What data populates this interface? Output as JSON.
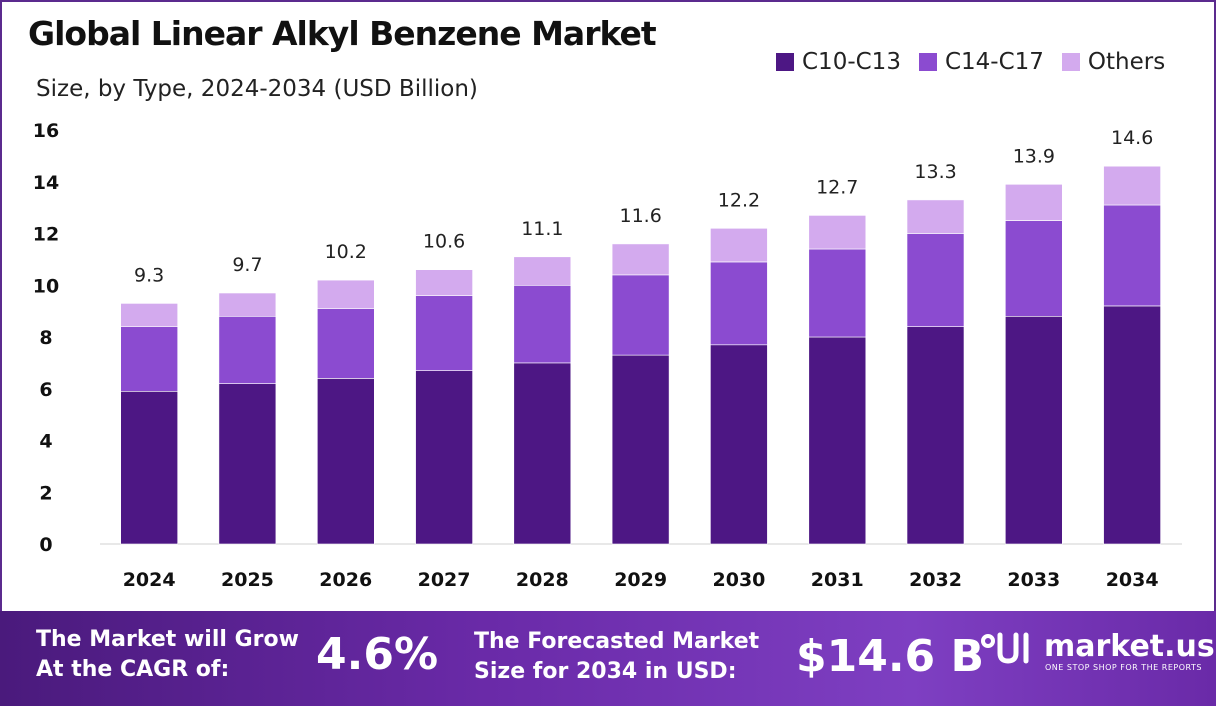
{
  "header": {
    "title": "Global Linear Alkyl Benzene Market",
    "subtitle": "Size, by Type, 2024-2034 (USD Billion)"
  },
  "colors": {
    "c10_c13": "#4d1784",
    "c14_c17": "#8b4bd0",
    "others": "#d3aaee",
    "accent": "#5b2a8e"
  },
  "legend": [
    {
      "label": "C10-C13",
      "color": "#4d1784"
    },
    {
      "label": "C14-C17",
      "color": "#8b4bd0"
    },
    {
      "label": "Others",
      "color": "#d3aaee"
    }
  ],
  "chart_data": {
    "type": "bar",
    "stacked": true,
    "title": "Global Linear Alkyl Benzene Market",
    "subtitle": "Size, by Type, 2024-2034 (USD Billion)",
    "categories": [
      "2024",
      "2025",
      "2026",
      "2027",
      "2028",
      "2029",
      "2030",
      "2031",
      "2032",
      "2033",
      "2034"
    ],
    "series": [
      {
        "name": "C10-C13",
        "values": [
          5.9,
          6.2,
          6.4,
          6.7,
          7.0,
          7.3,
          7.7,
          8.0,
          8.4,
          8.8,
          9.2
        ]
      },
      {
        "name": "C14-C17",
        "values": [
          2.5,
          2.6,
          2.7,
          2.9,
          3.0,
          3.1,
          3.2,
          3.4,
          3.6,
          3.7,
          3.9
        ]
      },
      {
        "name": "Others",
        "values": [
          0.9,
          0.9,
          1.1,
          1.0,
          1.1,
          1.2,
          1.3,
          1.3,
          1.3,
          1.4,
          1.5
        ]
      }
    ],
    "totals": [
      "9.3",
      "9.7",
      "10.2",
      "10.6",
      "11.1",
      "11.6",
      "12.2",
      "12.7",
      "13.3",
      "13.9",
      "14.6"
    ],
    "yticks": [
      "0",
      "2",
      "4",
      "6",
      "8",
      "10",
      "12",
      "14",
      "16"
    ],
    "ylim": [
      0,
      16
    ],
    "grid": false,
    "legend_position": "top-right"
  },
  "footer": {
    "cagr_line1": "The Market will Grow",
    "cagr_line2": "At the CAGR of:",
    "cagr_value": "4.6%",
    "size_line1": "The Forecasted Market",
    "size_line2": "Size for 2034 in USD:",
    "size_value": "$14.6 B",
    "logo_text": "market.us",
    "logo_tagline": "ONE STOP SHOP FOR THE REPORTS"
  }
}
